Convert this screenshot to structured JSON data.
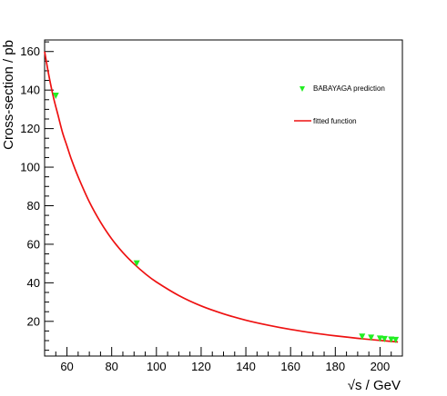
{
  "chart_data": {
    "type": "scatter",
    "title": "",
    "xlabel": "√s / GeV",
    "ylabel": "Cross-section / pb",
    "xlim": [
      50,
      210
    ],
    "ylim": [
      2,
      166
    ],
    "x_ticks": [
      60,
      80,
      100,
      120,
      140,
      160,
      180,
      200
    ],
    "y_ticks": [
      20,
      40,
      60,
      80,
      100,
      120,
      140,
      160
    ],
    "grid": false,
    "legend_position": "top-right",
    "series": [
      {
        "name": "BABAYAGA prediction",
        "kind": "markers",
        "marker": "triangle-down",
        "color": "#22ee22",
        "x": [
          55,
          91.2,
          192,
          196,
          200,
          202,
          205,
          207
        ],
        "y": [
          137,
          50,
          12,
          11.5,
          11,
          10.8,
          10.5,
          10.3
        ]
      },
      {
        "name": "fitted function",
        "kind": "line",
        "color": "#ee1111",
        "x": [
          50,
          52,
          54,
          56,
          58,
          60,
          62,
          65,
          70,
          75,
          80,
          85,
          90,
          95,
          100,
          110,
          120,
          130,
          140,
          150,
          160,
          170,
          180,
          190,
          200,
          208
        ],
        "y": [
          160,
          147,
          136,
          127,
          118,
          111,
          104,
          95,
          82,
          71.5,
          62.8,
          55.7,
          49.8,
          44.7,
          40.4,
          33.4,
          28,
          23.9,
          20.6,
          18,
          15.8,
          14,
          12.5,
          11.2,
          10.1,
          9.3
        ]
      }
    ]
  }
}
